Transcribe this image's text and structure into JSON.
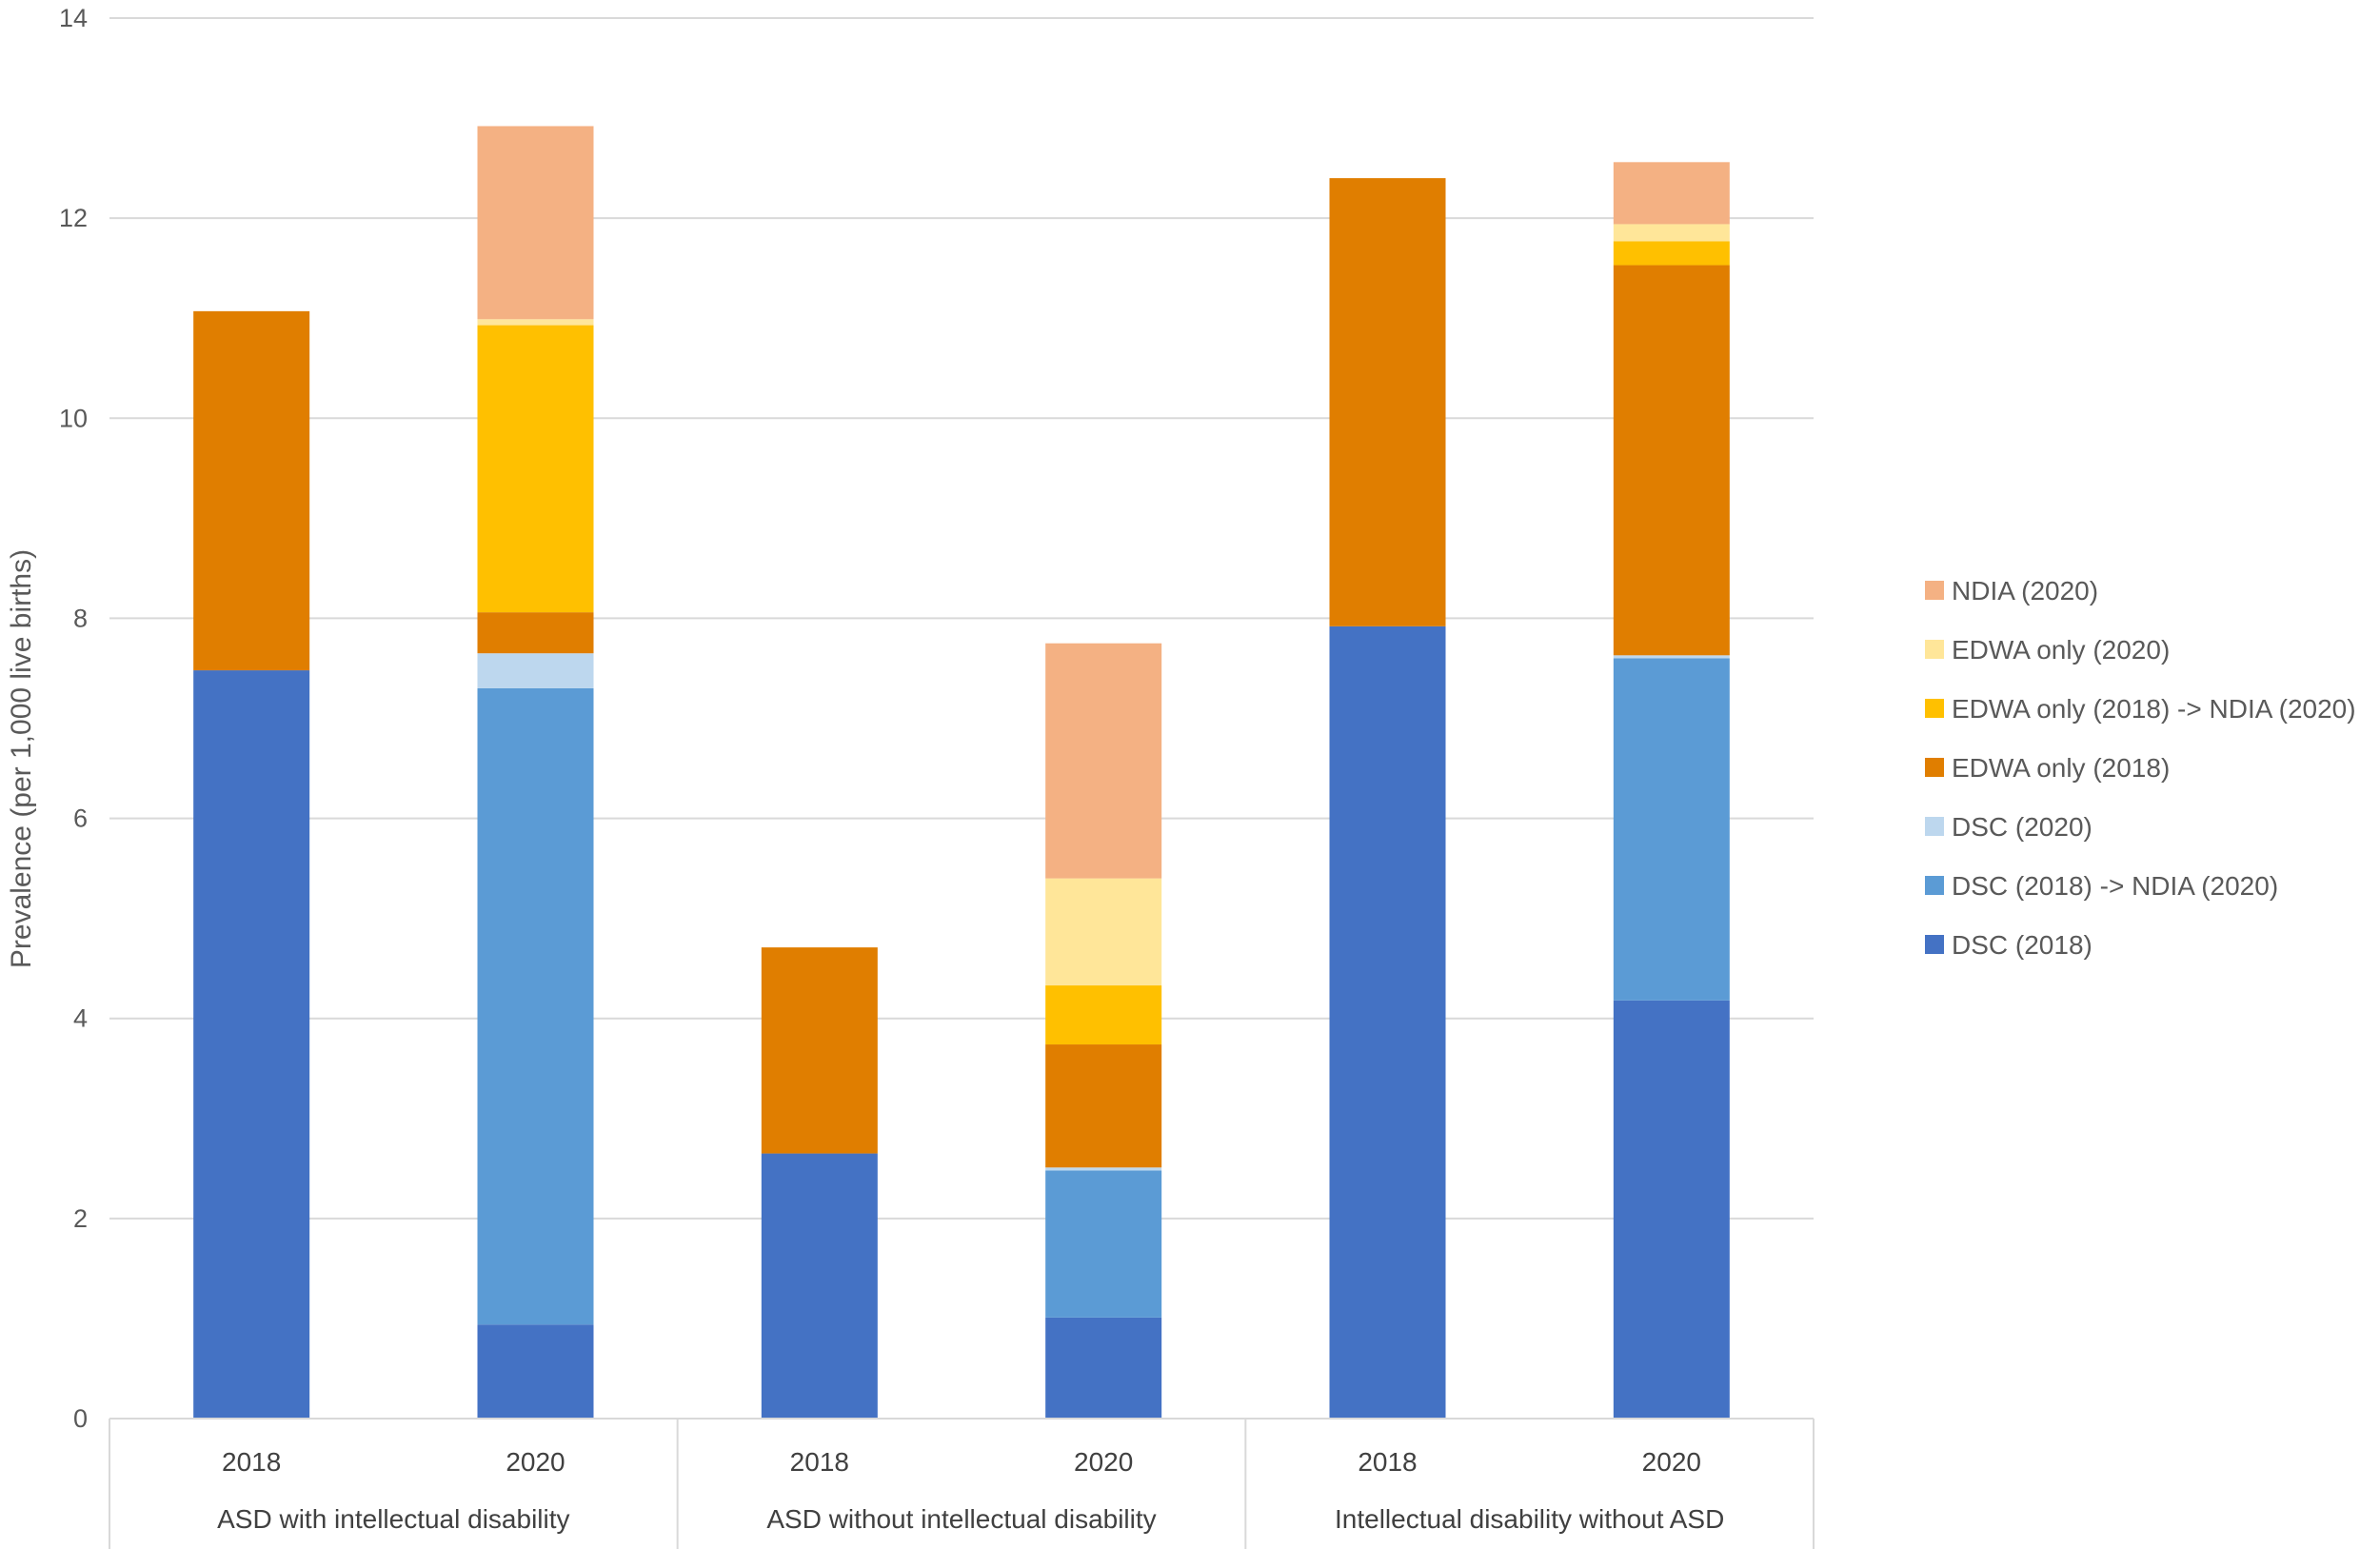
{
  "chart_data": {
    "type": "bar",
    "stacked": true,
    "ylabel": "Prevalence (per 1,000 live births)",
    "ylim": [
      0,
      14
    ],
    "yticks": [
      0,
      2,
      4,
      6,
      8,
      10,
      12,
      14
    ],
    "grid": true,
    "legend_position": "right",
    "groups": [
      "ASD with intellectual disability",
      "ASD without intellectual disability",
      "Intellectual disability without ASD"
    ],
    "categories": [
      "2018",
      "2020",
      "2018",
      "2020",
      "2018",
      "2020"
    ],
    "series": [
      {
        "name": "DSC (2018)",
        "color": "#4472C4",
        "values": [
          7.48,
          0.94,
          2.65,
          1.01,
          7.92,
          4.18
        ]
      },
      {
        "name": "DSC (2018) -> NDIA (2020)",
        "color": "#5B9BD5",
        "values": [
          0,
          6.36,
          0,
          1.47,
          0,
          3.42
        ]
      },
      {
        "name": "DSC (2020)",
        "color": "#BDD7EE",
        "values": [
          0,
          0.35,
          0,
          0.03,
          0,
          0.03
        ]
      },
      {
        "name": "EDWA only (2018)",
        "color": "#E07E00",
        "values": [
          3.59,
          0.41,
          2.06,
          1.23,
          4.48,
          3.9
        ]
      },
      {
        "name": "EDWA only (2018) -> NDIA (2020)",
        "color": "#FFC000",
        "values": [
          0,
          2.87,
          0,
          0.59,
          0,
          0.24
        ]
      },
      {
        "name": "EDWA only (2020)",
        "color": "#FFE699",
        "values": [
          0,
          0.06,
          0,
          1.07,
          0,
          0.17
        ]
      },
      {
        "name": "NDIA (2020)",
        "color": "#F4B183",
        "values": [
          0,
          1.93,
          0,
          2.35,
          0,
          0.62
        ]
      }
    ]
  }
}
